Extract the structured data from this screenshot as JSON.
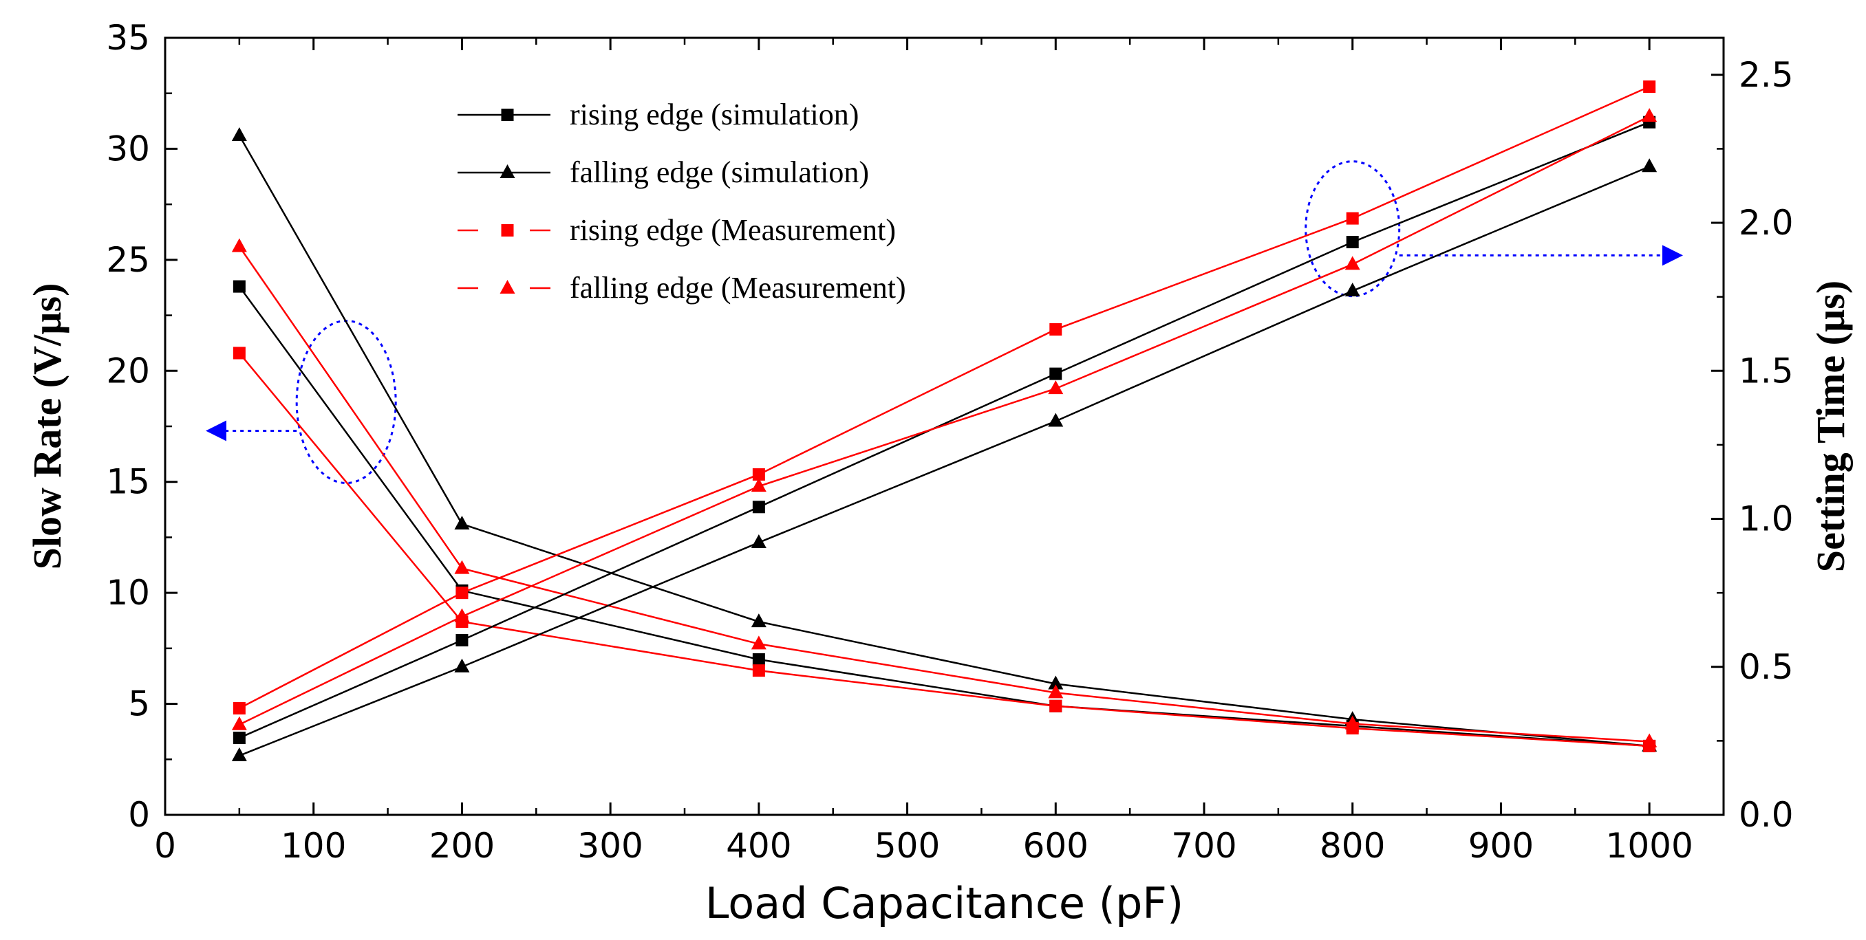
{
  "chart_data": {
    "type": "line",
    "title": "",
    "xlabel": "Load Capacitance (pF)",
    "ylabel_left": "Slow Rate (V/µs)",
    "ylabel_right": "Setting Time (µs)",
    "xlim": [
      0,
      1050
    ],
    "ylim_left": [
      0,
      35
    ],
    "ylim_right": [
      0,
      2.625
    ],
    "x_ticks": [
      0,
      100,
      200,
      300,
      400,
      500,
      600,
      700,
      800,
      900,
      1000
    ],
    "y_left_ticks": [
      0,
      5,
      10,
      15,
      20,
      25,
      30,
      35
    ],
    "y_right_ticks": [
      "0.0",
      "0.5",
      "1.0",
      "1.5",
      "2.0",
      "2.5"
    ],
    "grid": false,
    "legend_position": "top-center",
    "x": [
      50,
      200,
      400,
      600,
      800,
      1000
    ],
    "series": [
      {
        "name": "rising edge  (simulation)",
        "legend_id": "rising-sim",
        "axis": "left",
        "color": "#000000",
        "marker": "square",
        "values": [
          23.8,
          10.1,
          7.0,
          4.9,
          4.0,
          3.1
        ]
      },
      {
        "name": "falling edge (simulation)",
        "legend_id": "falling-sim",
        "axis": "left",
        "color": "#000000",
        "marker": "triangle",
        "values": [
          30.6,
          13.1,
          8.7,
          5.9,
          4.3,
          3.1
        ]
      },
      {
        "name": "rising edge  (Measurement)",
        "legend_id": "rising-meas",
        "axis": "left",
        "color": "#ff0000",
        "marker": "square",
        "values": [
          20.8,
          8.7,
          6.5,
          4.9,
          3.9,
          3.1
        ]
      },
      {
        "name": "falling edge (Measurement)",
        "legend_id": "falling-meas",
        "axis": "left",
        "color": "#ff0000",
        "marker": "triangle",
        "values": [
          25.6,
          11.1,
          7.7,
          5.5,
          4.1,
          3.3
        ]
      },
      {
        "name": "rising edge  (simulation)",
        "legend_id": null,
        "axis": "right",
        "color": "#000000",
        "marker": "square",
        "values": [
          0.26,
          0.59,
          1.04,
          1.49,
          1.935,
          2.34
        ]
      },
      {
        "name": "falling edge (simulation)",
        "legend_id": null,
        "axis": "right",
        "color": "#000000",
        "marker": "triangle",
        "values": [
          0.2,
          0.5,
          0.92,
          1.33,
          1.77,
          2.19
        ]
      },
      {
        "name": "rising edge  (Measurement)",
        "legend_id": null,
        "axis": "right",
        "color": "#ff0000",
        "marker": "square",
        "values": [
          0.36,
          0.75,
          1.15,
          1.64,
          2.015,
          2.46
        ]
      },
      {
        "name": "falling edge (Measurement)",
        "legend_id": null,
        "axis": "right",
        "color": "#ff0000",
        "marker": "triangle",
        "values": [
          0.305,
          0.67,
          1.11,
          1.44,
          1.86,
          2.36
        ]
      }
    ],
    "annotations": [
      {
        "type": "ellipse-with-arrow",
        "target": "left-axis",
        "color": "#0000ff",
        "direction": "left"
      },
      {
        "type": "ellipse-with-arrow",
        "target": "right-axis",
        "color": "#0000ff",
        "direction": "right"
      }
    ]
  }
}
